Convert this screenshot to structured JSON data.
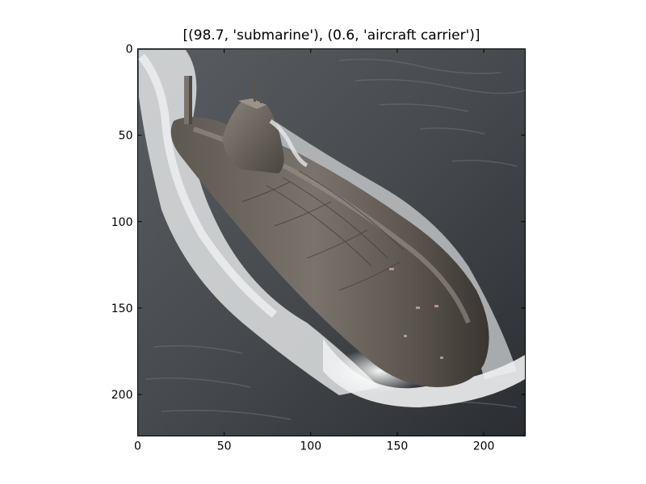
{
  "title": "[(98.7, 'submarine'), (0.6, 'aircraft carrier')]",
  "image": {
    "subject": "submarine",
    "colors": {
      "sea_dark": "#2f3236",
      "sea_mid": "#4a4e52",
      "hull_dark": "#3a3632",
      "hull_mid": "#6b655e",
      "hull_light": "#8a8279",
      "foam": "#e9ebec",
      "rust": "#c9a99a"
    }
  },
  "axes": {
    "x_ticks": [
      "0",
      "50",
      "100",
      "150",
      "200"
    ],
    "y_ticks": [
      "0",
      "50",
      "100",
      "150",
      "200"
    ],
    "x_tick_values": [
      0,
      50,
      100,
      150,
      200
    ],
    "y_tick_values": [
      0,
      50,
      100,
      150,
      200
    ],
    "xlim": [
      0,
      224
    ],
    "ylim": [
      0,
      224
    ]
  },
  "predictions": [
    {
      "score": 98.7,
      "label": "submarine"
    },
    {
      "score": 0.6,
      "label": "aircraft carrier"
    }
  ]
}
